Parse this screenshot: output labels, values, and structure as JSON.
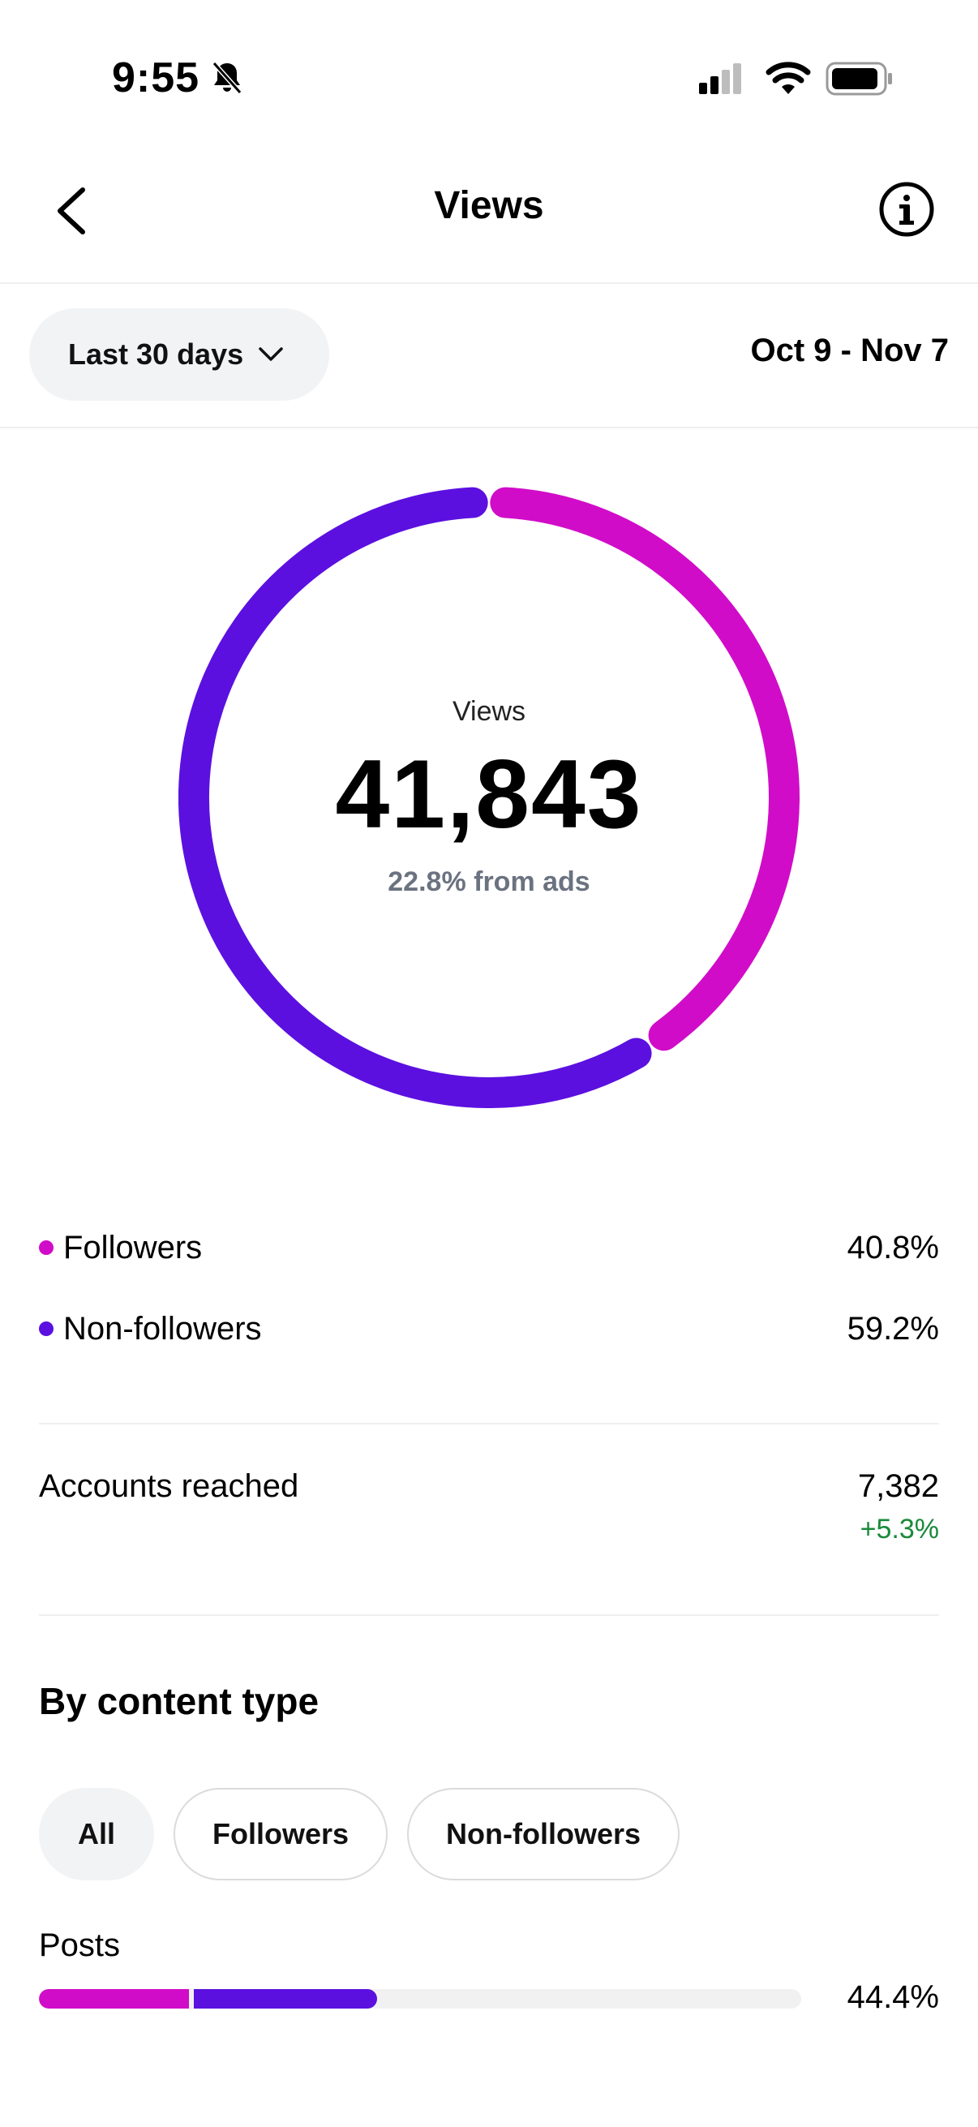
{
  "status": {
    "time": "9:55"
  },
  "header": {
    "title": "Views"
  },
  "filter": {
    "range_label": "Last 30 days",
    "date_range": "Oct 9 - Nov 7"
  },
  "summary": {
    "label": "Views",
    "value": "41,843",
    "sub": "22.8% from ads",
    "followers_fraction": 0.408,
    "colors": {
      "followers": "#d10cc8",
      "non_followers": "#5b10e0"
    }
  },
  "legend": [
    {
      "label": "Followers",
      "value": "40.8%"
    },
    {
      "label": "Non-followers",
      "value": "59.2%"
    }
  ],
  "reach": {
    "label": "Accounts reached",
    "value": "7,382",
    "change": "+5.3%"
  },
  "content_type": {
    "title": "By content type",
    "chips": [
      "All",
      "Followers",
      "Non-followers"
    ],
    "active_chip": "All",
    "posts": {
      "label": "Posts",
      "value": "44.4%",
      "followers_fraction": 0.2,
      "total_fraction": 0.444
    }
  }
}
